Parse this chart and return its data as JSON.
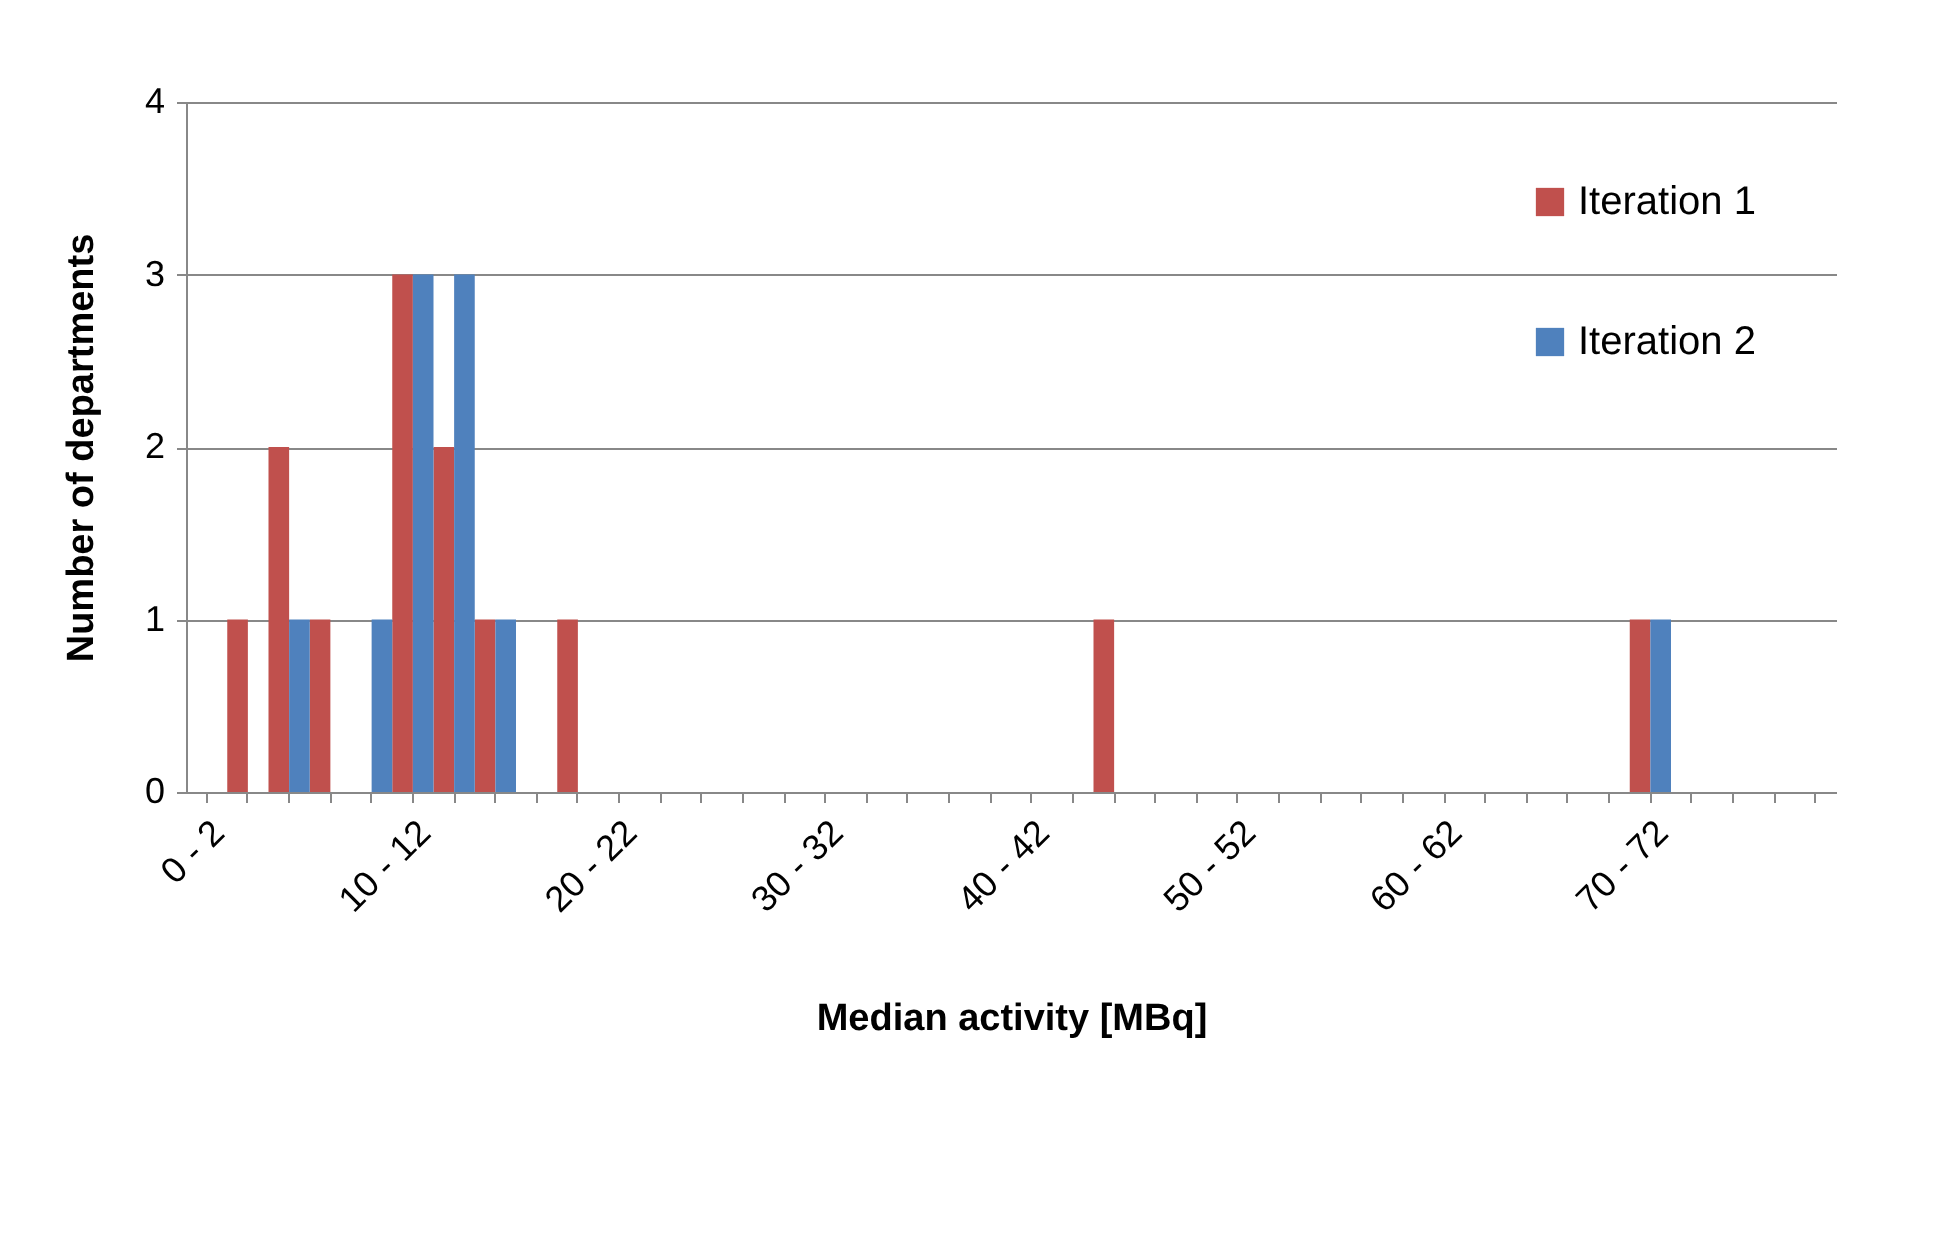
{
  "chart_data": {
    "type": "bar",
    "xlabel": "Median activity [MBq]",
    "ylabel": "Number of departments",
    "categories": [
      "0 - 2",
      null,
      null,
      null,
      null,
      "10 - 12",
      null,
      null,
      null,
      null,
      "20 - 22",
      null,
      null,
      null,
      null,
      "30 - 32",
      null,
      null,
      null,
      null,
      "40 - 42",
      null,
      null,
      null,
      null,
      "50 - 52",
      null,
      null,
      null,
      null,
      "60 - 62",
      null,
      null,
      null,
      null,
      "70 - 72",
      null,
      null,
      null,
      null
    ],
    "series": [
      {
        "name": "Iteration 1",
        "color": "#c0504d",
        "values": [
          0,
          1,
          2,
          1,
          0,
          3,
          2,
          1,
          0,
          1,
          0,
          0,
          0,
          0,
          0,
          0,
          0,
          0,
          0,
          0,
          0,
          0,
          1,
          0,
          0,
          0,
          0,
          0,
          0,
          0,
          0,
          0,
          0,
          0,
          0,
          1,
          0,
          0,
          0,
          0
        ]
      },
      {
        "name": "Iteration 2",
        "color": "#4f81bd",
        "values": [
          0,
          0,
          1,
          0,
          1,
          3,
          3,
          1,
          0,
          0,
          0,
          0,
          0,
          0,
          0,
          0,
          0,
          0,
          0,
          0,
          0,
          0,
          0,
          0,
          0,
          0,
          0,
          0,
          0,
          0,
          0,
          0,
          0,
          0,
          0,
          1,
          0,
          0,
          0,
          0
        ]
      }
    ],
    "ylim": [
      0,
      4
    ],
    "yticks": [
      0,
      1,
      2,
      3,
      4
    ],
    "grid": "y",
    "legend": "top right"
  }
}
